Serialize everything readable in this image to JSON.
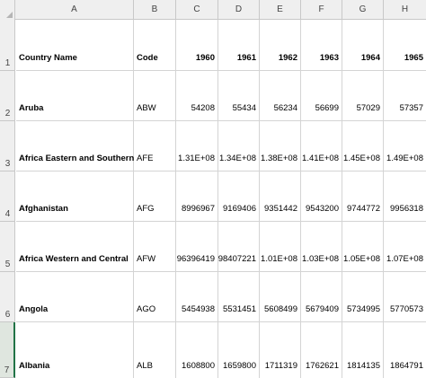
{
  "columns": [
    "A",
    "B",
    "C",
    "D",
    "E",
    "F",
    "G",
    "H"
  ],
  "rows": [
    {
      "number": "1",
      "cells": [
        "Country Name",
        "Code",
        "1960",
        "1961",
        "1962",
        "1963",
        "1964",
        "1965"
      ]
    },
    {
      "number": "2",
      "cells": [
        "Aruba",
        "ABW",
        "54208",
        "55434",
        "56234",
        "56699",
        "57029",
        "57357"
      ]
    },
    {
      "number": "3",
      "cells": [
        "Africa Eastern and Southern",
        "AFE",
        "1.31E+08",
        "1.34E+08",
        "1.38E+08",
        "1.41E+08",
        "1.45E+08",
        "1.49E+08"
      ]
    },
    {
      "number": "4",
      "cells": [
        "Afghanistan",
        "AFG",
        "8996967",
        "9169406",
        "9351442",
        "9543200",
        "9744772",
        "9956318"
      ]
    },
    {
      "number": "5",
      "cells": [
        "Africa Western and Central",
        "AFW",
        "96396419",
        "98407221",
        "1.01E+08",
        "1.03E+08",
        "1.05E+08",
        "1.07E+08"
      ]
    },
    {
      "number": "6",
      "cells": [
        "Angola",
        "AGO",
        "5454938",
        "5531451",
        "5608499",
        "5679409",
        "5734995",
        "5770573"
      ]
    },
    {
      "number": "7",
      "cells": [
        "Albania",
        "ALB",
        "1608800",
        "1659800",
        "1711319",
        "1762621",
        "1814135",
        "1864791"
      ]
    }
  ]
}
